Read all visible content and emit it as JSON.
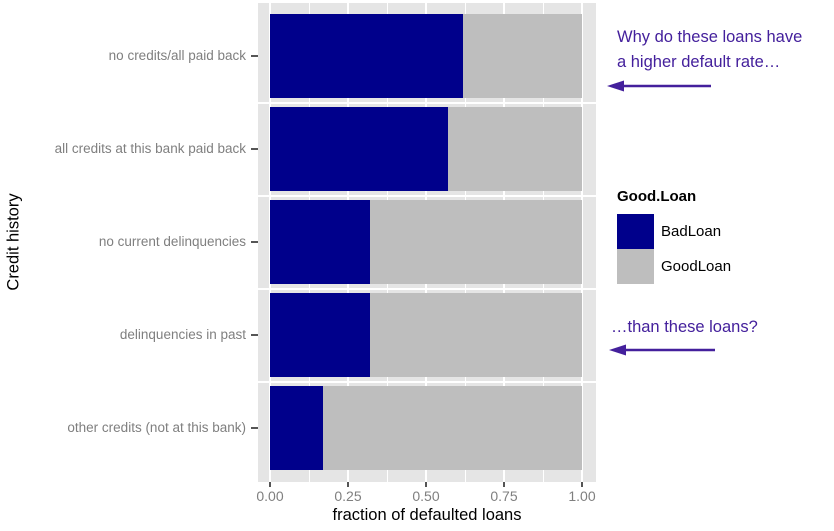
{
  "chart_data": {
    "type": "bar",
    "orientation": "horizontal",
    "stacked": true,
    "normalized": true,
    "title": "",
    "xlabel": "fraction of defaulted loans",
    "ylabel": "Credit history",
    "xlim": [
      0,
      1
    ],
    "x_ticks": [
      {
        "value": 0.0,
        "label": "0.00"
      },
      {
        "value": 0.25,
        "label": "0.25"
      },
      {
        "value": 0.5,
        "label": "0.50"
      },
      {
        "value": 0.75,
        "label": "0.75"
      },
      {
        "value": 1.0,
        "label": "1.00"
      }
    ],
    "x_minor_ticks": [
      0.125,
      0.375,
      0.625,
      0.875
    ],
    "grid": true,
    "panel_background": "#E5E5E5",
    "gridline_color": "#ffffff",
    "categories": [
      "no credits/all paid back",
      "all credits at this bank paid back",
      "no current delinquencies",
      "delinquencies in past",
      "other credits (not at this bank)"
    ],
    "series": [
      {
        "name": "BadLoan",
        "color": "#00008B",
        "values": [
          0.62,
          0.57,
          0.32,
          0.32,
          0.17
        ]
      },
      {
        "name": "GoodLoan",
        "color": "#BEBEBE",
        "values": [
          0.38,
          0.43,
          0.68,
          0.68,
          0.83
        ]
      }
    ],
    "legend_position": "right"
  },
  "legend": {
    "title": "Good.Loan",
    "items": [
      {
        "label": "BadLoan",
        "color": "#00008B"
      },
      {
        "label": "GoodLoan",
        "color": "#BEBEBE"
      }
    ]
  },
  "annotations": {
    "color": "#44209C",
    "question1_line1": "Why do these loans have",
    "question1_line2": "a higher default rate…",
    "question2": "…than these loans?"
  }
}
